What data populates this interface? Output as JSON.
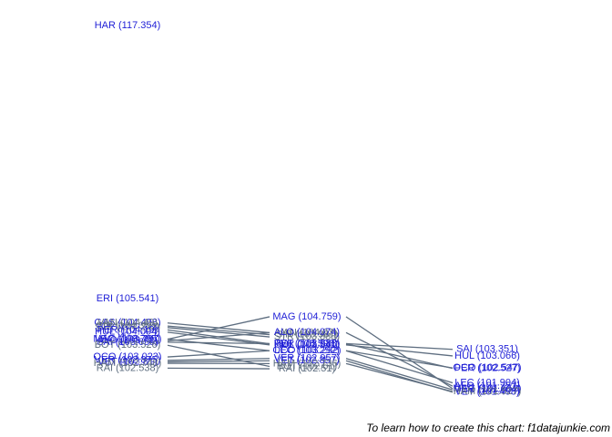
{
  "chart_data": {
    "type": "slope",
    "line_color": "#5e6e80",
    "ylim": [
      100.9,
      117.9
    ],
    "series": [
      {
        "name": "HAR",
        "color": "#1f1fd6",
        "values": [
          117.354,
          null,
          null
        ],
        "value_labels": [
          "HAR (117.354)",
          null,
          null
        ]
      },
      {
        "name": "ERI",
        "color": "#1f1fd6",
        "values": [
          105.541,
          null,
          null
        ],
        "value_labels": [
          "ERI (105.541)",
          null,
          null
        ]
      },
      {
        "name": "GAS",
        "color": "#1f1fd6",
        "values": [
          104.498,
          null,
          null
        ],
        "value_labels": [
          "GAS (104.498)",
          null,
          null
        ]
      },
      {
        "name": "VAN",
        "color": "#5e6e80",
        "values": [
          104.49,
          104.07,
          null
        ],
        "value_labels": [
          "VAN (104.49)",
          "VAN (104.07)",
          null
        ]
      },
      {
        "name": "SIR",
        "color": "#5e6e80",
        "values": [
          104.359,
          103.987,
          null
        ],
        "value_labels": [
          "SIR (104.359)",
          "SIR (103.987)",
          null
        ]
      },
      {
        "name": "STR",
        "color": "#5e6e80",
        "values": [
          104.292,
          103.888,
          null
        ],
        "value_labels": [
          "STR (104.292)",
          "STR (103.888)",
          null
        ]
      },
      {
        "name": "PER",
        "color": "#1f1fd6",
        "values": [
          104.19,
          103.588,
          102.527
        ],
        "value_labels": [
          "PER (104.19)",
          "PER (103.588)",
          "PER (102.527)"
        ]
      },
      {
        "name": "HUL",
        "color": "#1f1fd6",
        "values": [
          104.094,
          103.541,
          103.066
        ],
        "value_labels": [
          "HUL (104.094)",
          "HUL (103.541)",
          "HUL (103.066)"
        ]
      },
      {
        "name": "LEC",
        "color": "#1f1fd6",
        "values": [
          103.795,
          103.292,
          101.904
        ],
        "value_labels": [
          "LEC (103.795)",
          "LEC (103.292)",
          "LEC (101.904)"
        ]
      },
      {
        "name": "MAG",
        "color": "#1f1fd6",
        "values": [
          103.787,
          104.759,
          101.652
        ],
        "value_labels": [
          "MAG (103.787)",
          "MAG (104.759)",
          "MAG (101.652)"
        ]
      },
      {
        "name": "ALO",
        "color": "#1f1fd6",
        "values": [
          103.72,
          104.074,
          101.757
        ],
        "value_labels": [
          "ALO (103.72)",
          "ALO (104.074)",
          "ALO (101.757)"
        ]
      },
      {
        "name": "SAI",
        "color": "#1f1fd6",
        "values": [
          103.659,
          103.598,
          103.351
        ],
        "value_labels": [
          "SAI (103.659)",
          "SAI (103.598)",
          "SAI (103.351)"
        ]
      },
      {
        "name": "BOT",
        "color": "#5e6e80",
        "values": [
          103.526,
          102.61,
          null
        ],
        "value_labels": [
          "BOT (103.526)",
          "BOT (102.61)",
          null
        ]
      },
      {
        "name": "OCO",
        "color": "#1f1fd6",
        "values": [
          103.023,
          103.292,
          102.547
        ],
        "value_labels": [
          "OCO (103.023)",
          "OCO (103.292)",
          "OCO (102.547)"
        ]
      },
      {
        "name": "VER",
        "color": "#1f1fd6",
        "values": [
          102.875,
          102.957,
          101.604
        ],
        "value_labels": [
          "VER (102.875)",
          "VER (102.957)",
          "VER (101.604)"
        ]
      },
      {
        "name": "VET",
        "color": "#1f1fd6",
        "values": [
          102.81,
          102.857,
          101.498
        ],
        "value_labels": [
          "VET (102.81)",
          "VET (102.857)",
          "VET (101.498)"
        ]
      },
      {
        "name": "HAM",
        "color": "#5e6e80",
        "values": [
          102.748,
          102.736,
          101.527
        ],
        "value_labels": [
          "HAM (102.748)",
          "HAM (102.736)",
          "HAM (101.527)"
        ]
      },
      {
        "name": "RAI",
        "color": "#5e6e80",
        "values": [
          102.538,
          102.51,
          null
        ],
        "value_labels": [
          "RAI (102.538)",
          "RAI (102.51)",
          null
        ]
      }
    ],
    "caption": "To learn how to create this chart: f1datajunkie.com"
  }
}
